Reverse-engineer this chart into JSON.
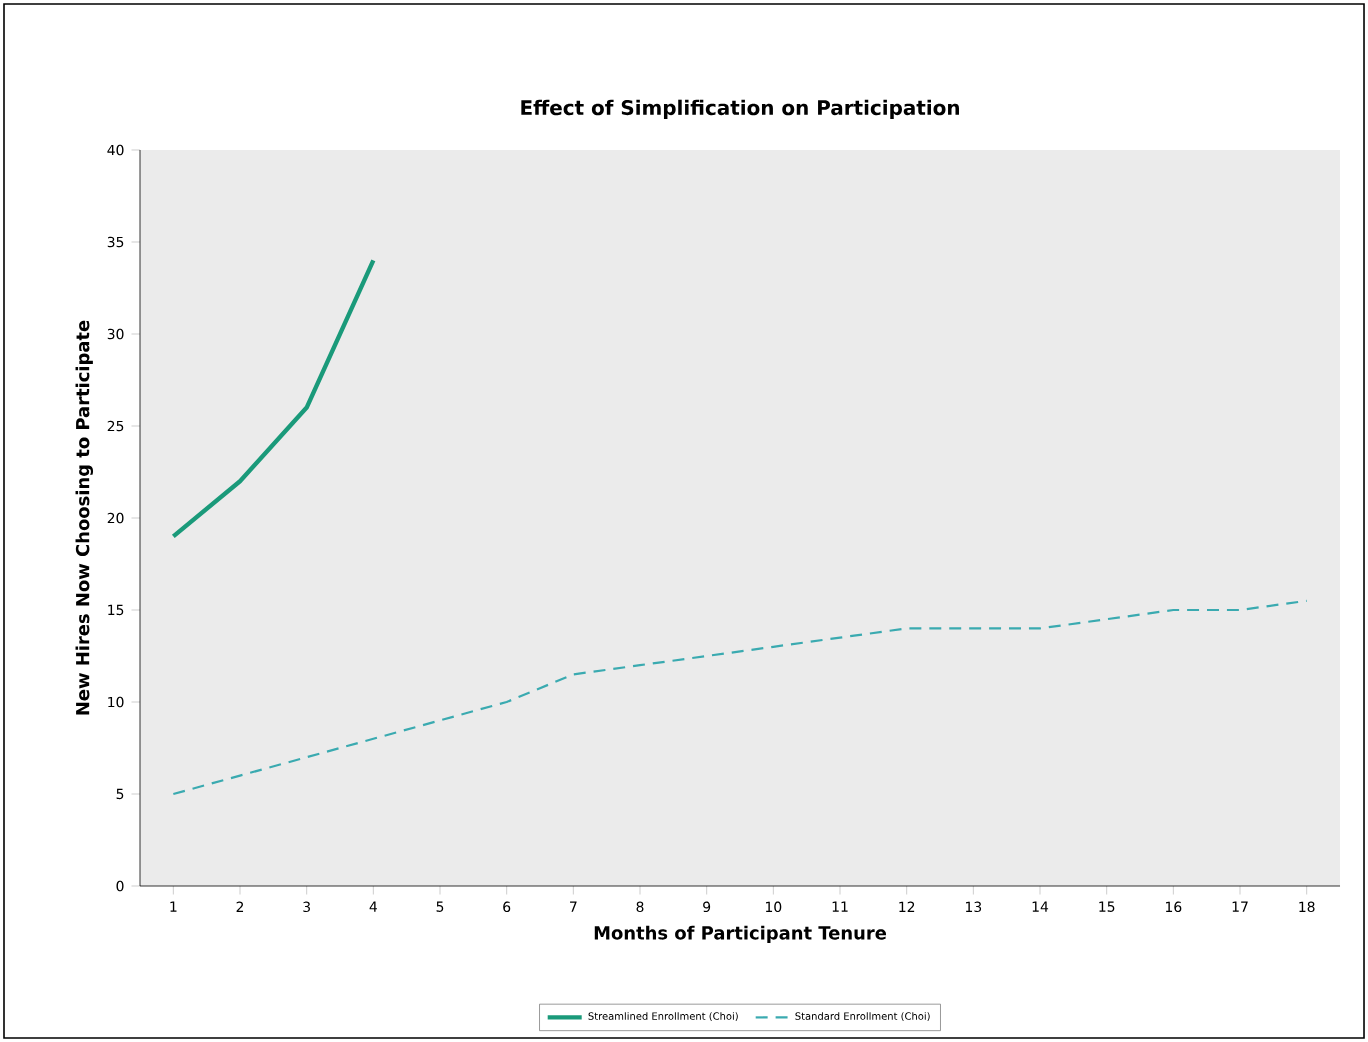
{
  "chart_data": {
    "type": "line",
    "title": "Effect of Simplification on Participation",
    "xlabel": "Months of Participant Tenure",
    "ylabel": "New Hires Now Choosing to Participate",
    "categories": [
      "1",
      "2",
      "3",
      "4",
      "5",
      "6",
      "7",
      "8",
      "9",
      "10",
      "11",
      "12",
      "13",
      "14",
      "15",
      "16",
      "17",
      "18"
    ],
    "series": [
      {
        "name": "Streamlined Enrollment (Choi)",
        "color": "#1a9a7a",
        "line_style": "solid",
        "values": [
          19,
          22,
          26,
          34,
          null,
          null,
          null,
          null,
          null,
          null,
          null,
          null,
          null,
          null,
          null,
          null,
          null,
          null
        ]
      },
      {
        "name": "Standard Enrollment (Choi)",
        "color": "#3aaab0",
        "line_style": "dashed",
        "values": [
          5,
          6,
          7,
          8,
          9,
          10,
          11.5,
          12,
          12.5,
          13,
          13.5,
          14,
          14,
          14,
          14.5,
          15,
          15,
          15.5
        ]
      }
    ],
    "ylim": [
      0,
      40
    ],
    "yticks": [
      0,
      5,
      10,
      15,
      20,
      25,
      30,
      35,
      40
    ],
    "grid": false,
    "legend": "bottom",
    "marker": "none"
  }
}
